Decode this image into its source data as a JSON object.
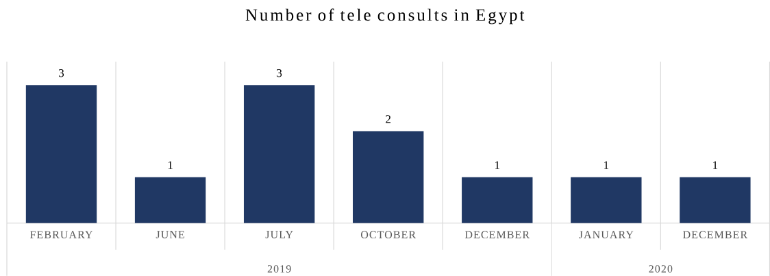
{
  "chart_data": {
    "type": "bar",
    "title": "Number of tele consults in Egypt",
    "categories": [
      "FEBRUARY",
      "JUNE",
      "JULY",
      "OCTOBER",
      "DECEMBER",
      "JANUARY",
      "DECEMBER"
    ],
    "values": [
      3,
      1,
      3,
      2,
      1,
      1,
      1
    ],
    "color": "#203864",
    "data_labels": true,
    "grid": "x",
    "annotations": [
      "2019",
      "2020"
    ]
  }
}
